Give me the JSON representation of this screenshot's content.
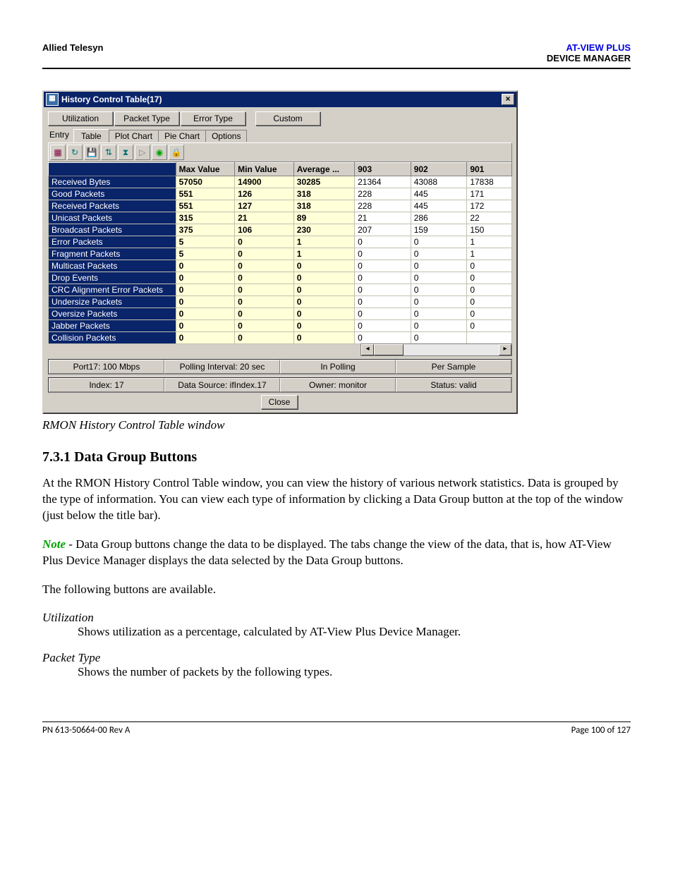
{
  "header": {
    "left": "Allied Telesyn",
    "right_product": "AT-VIEW PLUS",
    "right_sub": "DEVICE MANAGER"
  },
  "window": {
    "title": "History Control Table(17)",
    "close_glyph": "×",
    "group_buttons": [
      "Utilization",
      "Packet Type",
      "Error Type",
      "Custom"
    ],
    "entry_label": "Entry",
    "tabs": [
      "Table",
      "Plot Chart",
      "Pie Chart",
      "Options"
    ],
    "active_tab_index": 0,
    "toolbar_icons": [
      {
        "name": "grid-icon",
        "glyph": "▦",
        "color": "#800040"
      },
      {
        "name": "refresh-icon",
        "glyph": "↻",
        "color": "#007070"
      },
      {
        "name": "save-icon",
        "glyph": "💾",
        "color": "#007070"
      },
      {
        "name": "updown-icon",
        "glyph": "⇅",
        "color": "#007070"
      },
      {
        "name": "clock-icon",
        "glyph": "⧗",
        "color": "#007070"
      },
      {
        "name": "play-icon",
        "glyph": "▷",
        "color": "#808080"
      },
      {
        "name": "stop-icon",
        "glyph": "◉",
        "color": "#009e00"
      },
      {
        "name": "lock-icon",
        "glyph": "🔒",
        "color": "#0050b0"
      }
    ],
    "columns": [
      "",
      "Max Value",
      "Min Value",
      "Average ...",
      "903",
      "902",
      "901"
    ],
    "rows": [
      {
        "label": "Received Bytes",
        "v": [
          "57050",
          "14900",
          "30285",
          "21364",
          "43088",
          "17838"
        ]
      },
      {
        "label": "Good Packets",
        "v": [
          "551",
          "126",
          "318",
          "228",
          "445",
          "171"
        ]
      },
      {
        "label": "Received Packets",
        "v": [
          "551",
          "127",
          "318",
          "228",
          "445",
          "172"
        ]
      },
      {
        "label": "Unicast Packets",
        "v": [
          "315",
          "21",
          "89",
          "21",
          "286",
          "22"
        ]
      },
      {
        "label": "Broadcast Packets",
        "v": [
          "375",
          "106",
          "230",
          "207",
          "159",
          "150"
        ]
      },
      {
        "label": "Error Packets",
        "v": [
          "5",
          "0",
          "1",
          "0",
          "0",
          "1"
        ]
      },
      {
        "label": "Fragment Packets",
        "v": [
          "5",
          "0",
          "1",
          "0",
          "0",
          "1"
        ]
      },
      {
        "label": "Multicast Packets",
        "v": [
          "0",
          "0",
          "0",
          "0",
          "0",
          "0"
        ]
      },
      {
        "label": "Drop Events",
        "v": [
          "0",
          "0",
          "0",
          "0",
          "0",
          "0"
        ]
      },
      {
        "label": "CRC Alignment Error Packets",
        "v": [
          "0",
          "0",
          "0",
          "0",
          "0",
          "0"
        ]
      },
      {
        "label": "Undersize Packets",
        "v": [
          "0",
          "0",
          "0",
          "0",
          "0",
          "0"
        ]
      },
      {
        "label": "Oversize Packets",
        "v": [
          "0",
          "0",
          "0",
          "0",
          "0",
          "0"
        ]
      },
      {
        "label": "Jabber Packets",
        "v": [
          "0",
          "0",
          "0",
          "0",
          "0",
          "0"
        ]
      },
      {
        "label": "Collision Packets",
        "v": [
          "0",
          "0",
          "0",
          "0",
          "0",
          ""
        ]
      }
    ],
    "status1": [
      "Port17: 100 Mbps",
      "Polling Interval: 20 sec",
      "In Polling",
      "Per Sample"
    ],
    "status2": [
      "Index: 17",
      "Data Source: ifIndex.17",
      "Owner: monitor",
      "Status: valid"
    ],
    "close_button": "Close"
  },
  "caption": "RMON History Control Table window",
  "section": {
    "heading": "7.3.1 Data Group Buttons",
    "para1": "At the RMON History Control Table window, you can view the history of various network statistics. Data is grouped by the type of information. You can view each type of information by clicking a Data Group button at the top of the window (just below the title bar).",
    "note_label": "Note",
    "note_body": " - Data Group buttons change the data to be displayed. The tabs change the view of the data, that is, how AT-View Plus Device Manager displays the data selected by the Data Group buttons.",
    "para2": "The following buttons are available.",
    "term1": "Utilization",
    "term1_desc": "Shows utilization as a percentage, calculated by AT-View Plus Device Manager.",
    "term2": "Packet Type",
    "term2_desc": "Shows the number of packets by the following types."
  },
  "footer": {
    "left": "PN 613-50664-00 Rev A",
    "right": "Page 100 of 127"
  }
}
